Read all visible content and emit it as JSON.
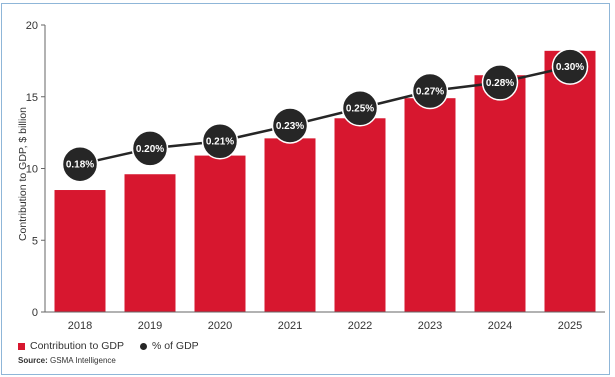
{
  "chart_data": {
    "type": "bar",
    "categories": [
      "2018",
      "2019",
      "2020",
      "2021",
      "2022",
      "2023",
      "2024",
      "2025"
    ],
    "ylabel": "Contribution to GDP, $ billion",
    "ylim": [
      0,
      20
    ],
    "yticks": [
      "0",
      "5",
      "10",
      "15",
      "20"
    ],
    "grid": false,
    "legend_placement": "bottom-left",
    "series": [
      {
        "name": "Contribution to GDP",
        "type": "bar",
        "color": "#d7172f",
        "values": [
          8.5,
          9.6,
          10.9,
          12.1,
          13.5,
          14.9,
          16.5,
          18.2
        ]
      },
      {
        "name": "% of GDP",
        "type": "line",
        "color": "#262626",
        "labels": [
          "0.18%",
          "0.20%",
          "0.21%",
          "0.23%",
          "0.25%",
          "0.27%",
          "0.28%",
          "0.30%"
        ],
        "values": [
          0.18,
          0.2,
          0.21,
          0.23,
          0.25,
          0.27,
          0.28,
          0.3
        ],
        "plot_positions": [
          10.3,
          11.4,
          11.9,
          13.0,
          14.2,
          15.4,
          16.0,
          17.1
        ]
      }
    ]
  },
  "source": {
    "label": "Source:",
    "text": "GSMA Intelligence"
  }
}
